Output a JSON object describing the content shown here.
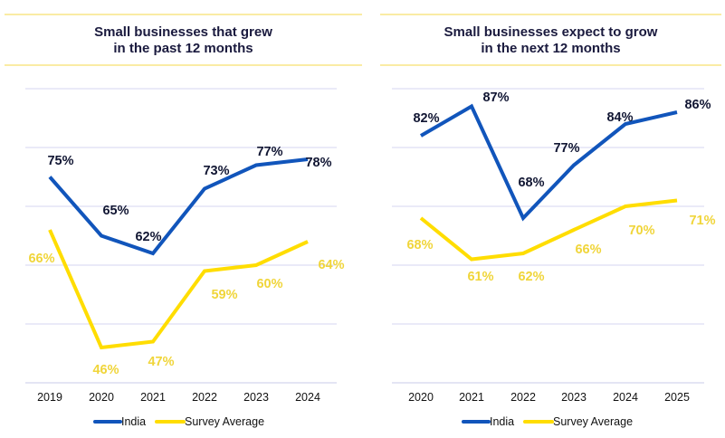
{
  "chart_data": [
    {
      "type": "line",
      "title": "Small businesses that grew in the past 12 months",
      "title_lines": [
        "Small businesses that grew",
        "in the past 12 months"
      ],
      "categories": [
        "2019",
        "2020",
        "2021",
        "2022",
        "2023",
        "2024"
      ],
      "series": [
        {
          "name": "India",
          "color": "#1155bb",
          "values": [
            75,
            65,
            62,
            73,
            77,
            78
          ],
          "labels": [
            "75%",
            "65%",
            "62%",
            "73%",
            "77%",
            "78%"
          ]
        },
        {
          "name": "Survey Average",
          "color": "#ffdd00",
          "values": [
            66,
            46,
            47,
            59,
            60,
            64
          ],
          "labels": [
            "66%",
            "46%",
            "47%",
            "59%",
            "60%",
            "64%"
          ]
        }
      ],
      "ylim": [
        40,
        90
      ],
      "grid": true,
      "legend": "bottom"
    },
    {
      "type": "line",
      "title": "Small businesses expect to grow in the next 12 months",
      "title_lines": [
        "Small businesses expect to grow",
        "in the next 12 months"
      ],
      "categories": [
        "2020",
        "2021",
        "2022",
        "2023",
        "2024",
        "2025"
      ],
      "series": [
        {
          "name": "India",
          "color": "#1155bb",
          "values": [
            82,
            87,
            68,
            77,
            84,
            86
          ],
          "labels": [
            "82%",
            "87%",
            "68%",
            "77%",
            "84%",
            "86%"
          ]
        },
        {
          "name": "Survey Average",
          "color": "#ffdd00",
          "values": [
            68,
            61,
            62,
            66,
            70,
            71
          ],
          "labels": [
            "68%",
            "61%",
            "62%",
            "66%",
            "70%",
            "71%"
          ]
        }
      ],
      "ylim": [
        40,
        90
      ],
      "grid": true,
      "legend": "bottom"
    }
  ]
}
